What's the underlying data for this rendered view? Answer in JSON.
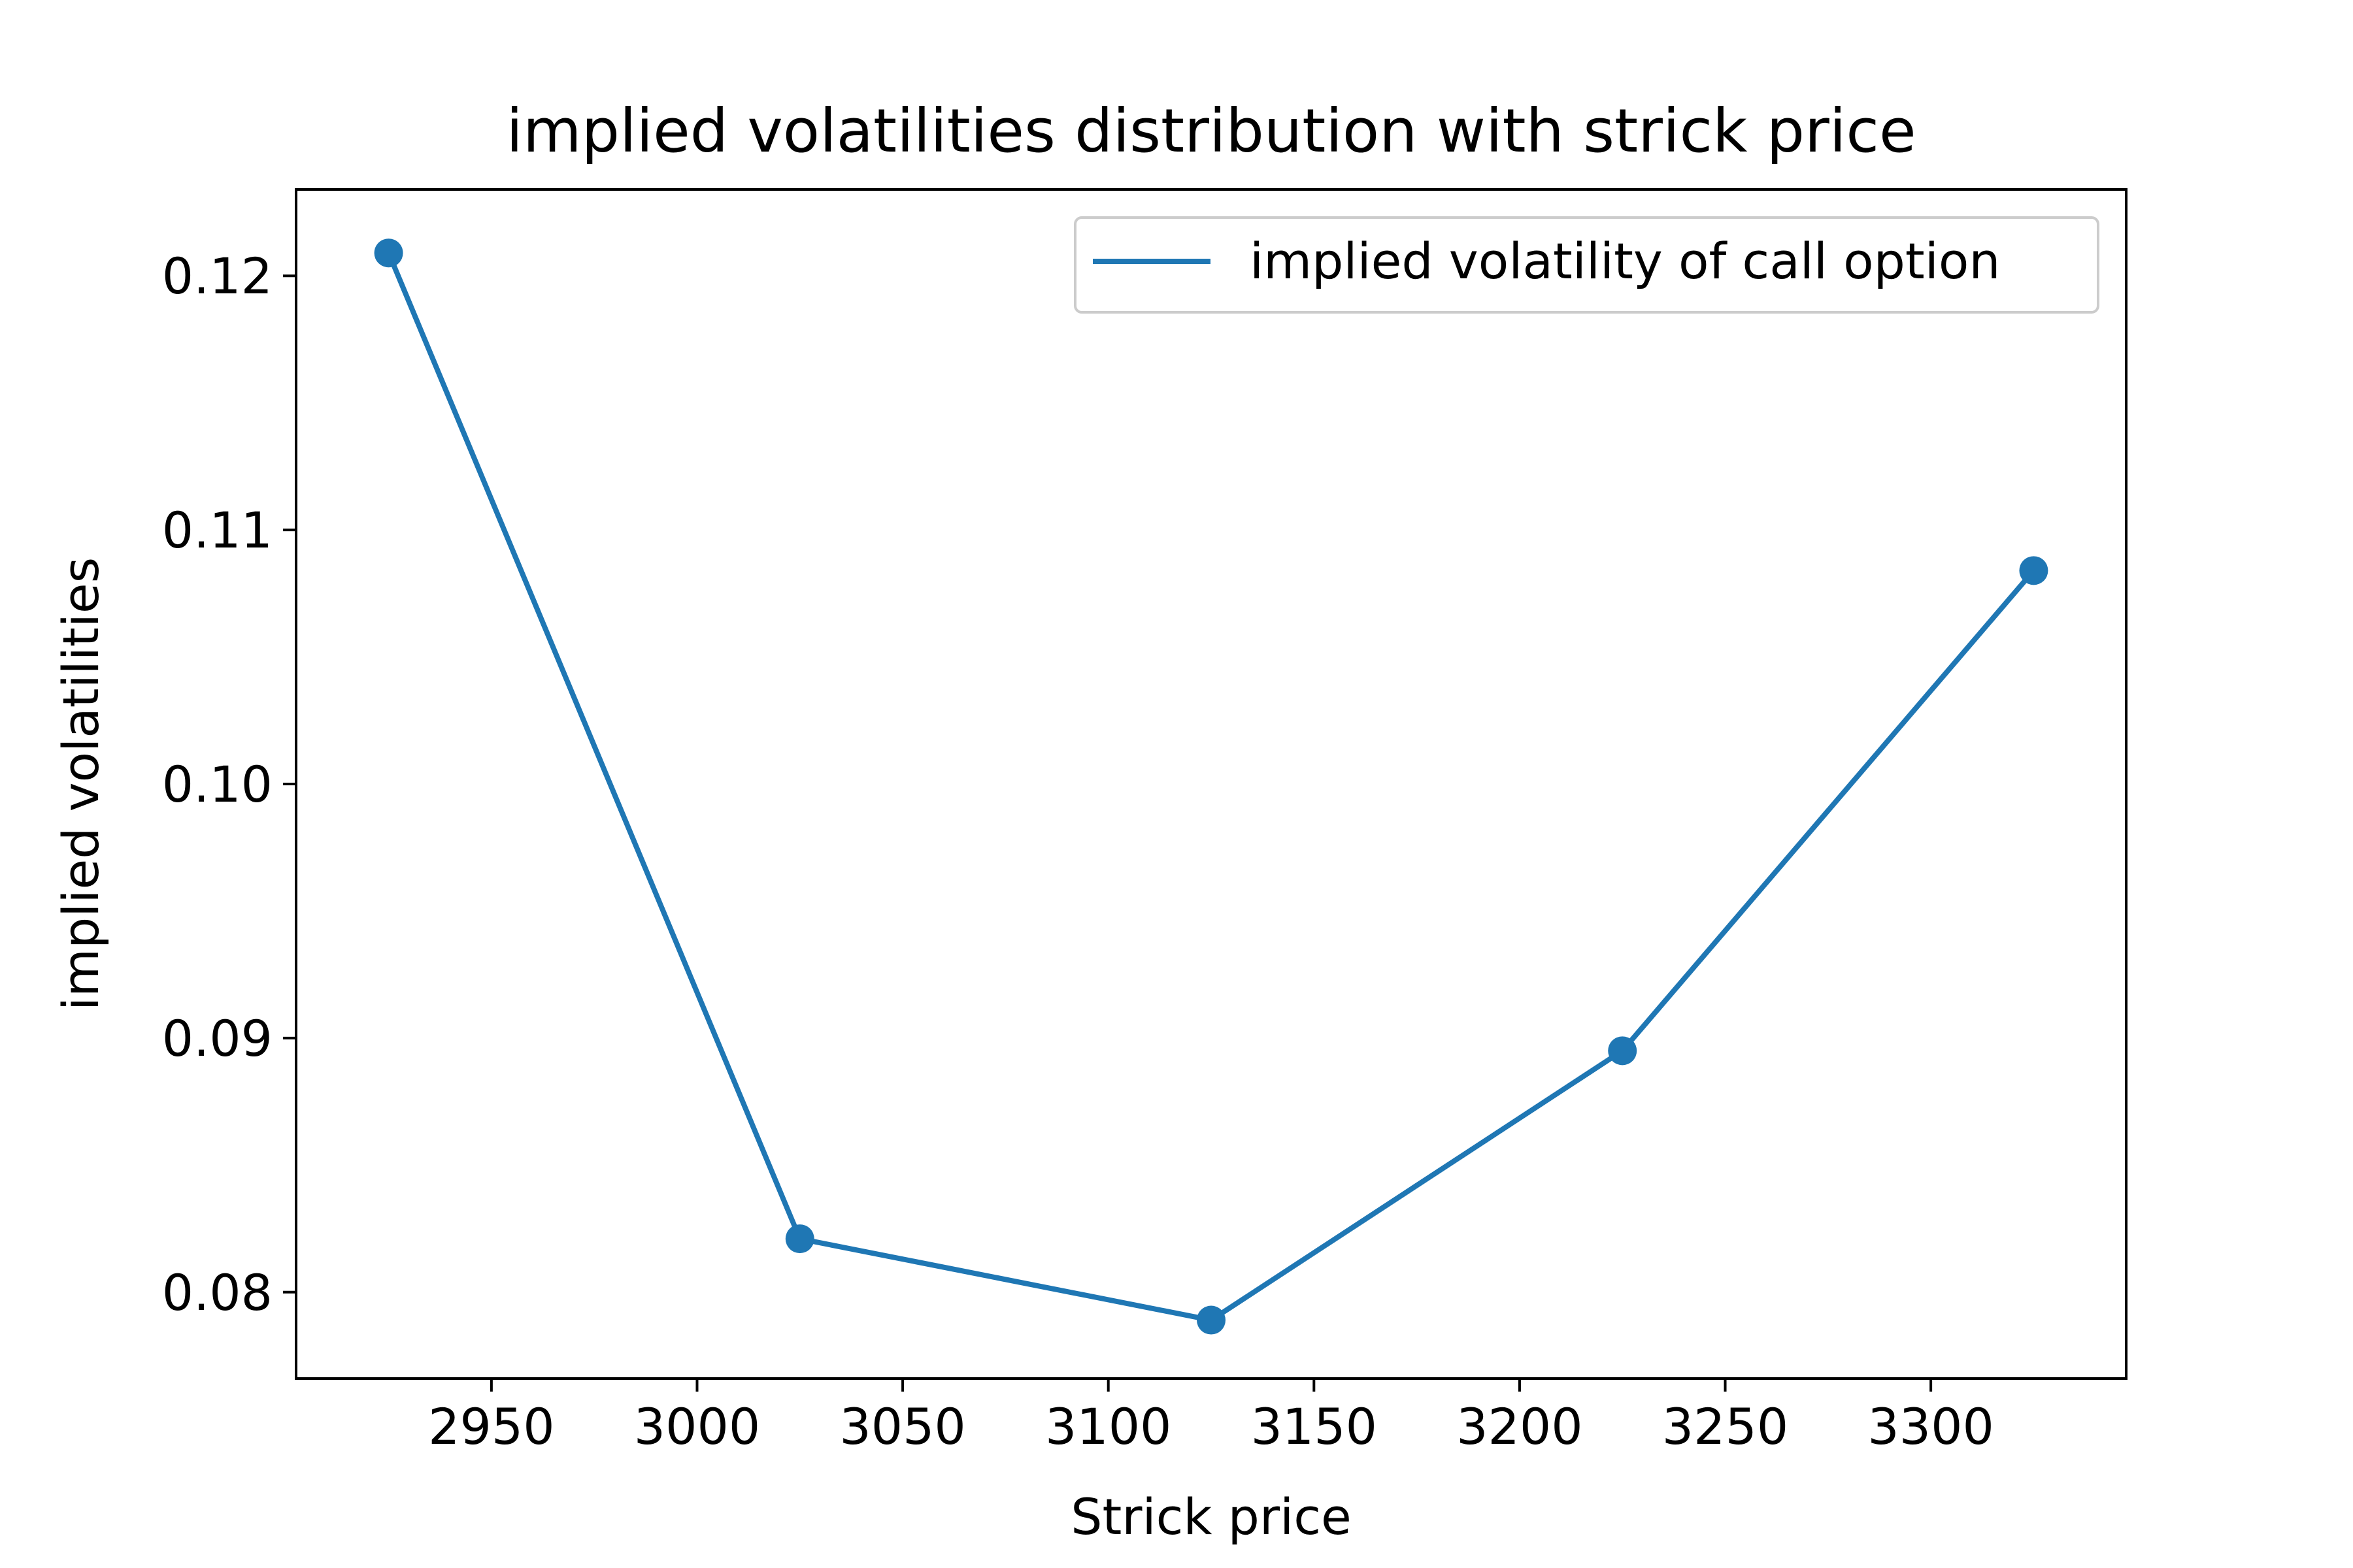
{
  "chart_data": {
    "type": "line",
    "title": "implied volatilities distribution with strick price",
    "xlabel": "Strick price",
    "ylabel": "implied volatilities",
    "xlim": [
      2902.5,
      3347.5
    ],
    "ylim": [
      0.0766,
      0.1234
    ],
    "xticks": [
      "2950",
      "3000",
      "3050",
      "3100",
      "3150",
      "3200",
      "3250",
      "3300"
    ],
    "xtick_values": [
      2950,
      3000,
      3050,
      3100,
      3150,
      3200,
      3250,
      3300
    ],
    "yticks": [
      "0.08",
      "0.09",
      "0.10",
      "0.11",
      "0.12"
    ],
    "ytick_values": [
      0.08,
      0.09,
      0.1,
      0.11,
      0.12
    ],
    "grid": false,
    "legend_position": "top-right",
    "series": [
      {
        "name": "implied volatility of call option",
        "color": "#1f77b4",
        "marker": "circle",
        "x": [
          2925,
          3025,
          3125,
          3225,
          3325
        ],
        "y": [
          0.1209,
          0.0821,
          0.0789,
          0.0895,
          0.1084
        ]
      }
    ]
  }
}
